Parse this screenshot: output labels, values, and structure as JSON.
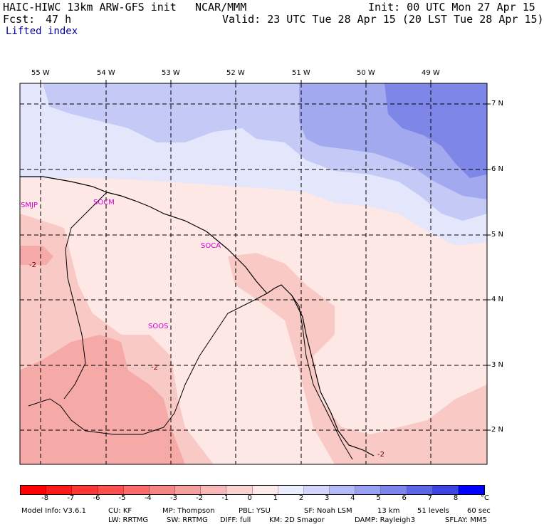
{
  "header": {
    "model": "HAIC-HIWC 13km ARW-GFS init",
    "org": "NCAR/MMM",
    "init": "Init: 00 UTC Mon 27 Apr 15",
    "fcst_label": "Fcst:",
    "fcst_value": "47 h",
    "valid": "Valid: 23 UTC Tue 28 Apr 15 (20 LST Tue 28 Apr 15)",
    "field": "Lifted index"
  },
  "map": {
    "lon_labels": [
      "55 W",
      "54 W",
      "53 W",
      "52 W",
      "51 W",
      "50 W",
      "49 W"
    ],
    "lat_labels": [
      "7 N",
      "6 N",
      "5 N",
      "4 N",
      "3 N",
      "2 N"
    ],
    "stations": [
      "SMJP",
      "SOCM",
      "SOCA",
      "SOOS"
    ],
    "contour_labels": [
      "-2",
      "-2",
      "-2"
    ],
    "colors": {
      "neg1": "#fde8e6",
      "neg2": "#f9c9c6",
      "neg3": "#f5aaa7",
      "pos1": "#e4e6fb",
      "pos2": "#c4c9f5",
      "pos3": "#a2a9ef",
      "pos4": "#7e86e8"
    }
  },
  "colorbar": {
    "ticks": [
      "-8",
      "-7",
      "-6",
      "-5",
      "-4",
      "-3",
      "-2",
      "-1",
      "0",
      "1",
      "2",
      "3",
      "4",
      "5",
      "6",
      "7",
      "8"
    ],
    "unit": "°C",
    "colors": [
      "#ff1a1a",
      "#ff3636",
      "#ff5050",
      "#ff6a6a",
      "#f68585",
      "#f4a0a0",
      "#f7b9b9",
      "#fbd2d2",
      "#fdeaea",
      "#ecedfe",
      "#d2d4fb",
      "#b7bbf7",
      "#9aa0f3",
      "#7c84ee",
      "#5d66e9",
      "#3d46e2",
      "#1a22d8"
    ]
  },
  "footer": {
    "line1": [
      "Model Info: V3.6.1",
      "CU: KF",
      "MP: Thompson",
      "PBL: YSU",
      "SF: Noah LSM",
      "13 km",
      "51 levels",
      "60 sec"
    ],
    "line2": [
      "LW: RRTMG",
      "SW: RRTMG",
      "DIFF: full",
      "KM: 2D Smagor",
      "DAMP: Rayleigh3",
      "SFLAY: MM5"
    ]
  }
}
